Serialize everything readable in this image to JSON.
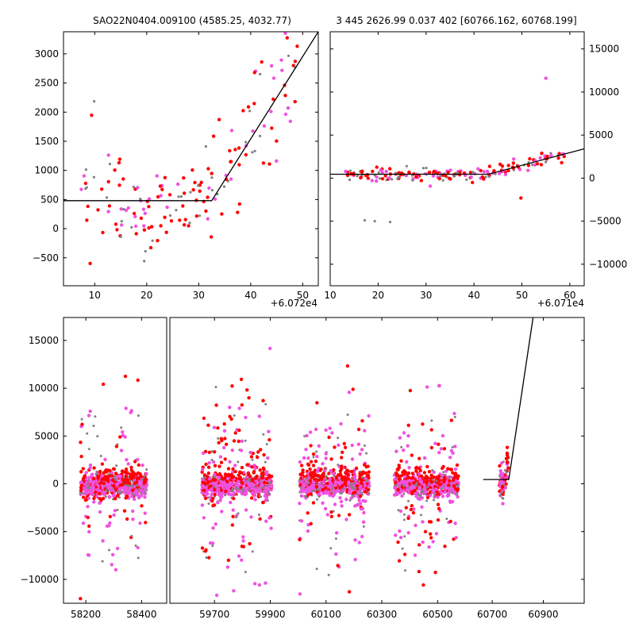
{
  "colors": {
    "gray": "#808080",
    "red": "#ff0000",
    "pink": "#f052e0",
    "line": "#000000"
  },
  "chart_data": [
    {
      "id": "top-left",
      "type": "scatter",
      "title": "SAO22N0404.009100 (4585.25, 4032.77)",
      "xlim": [
        4,
        53
      ],
      "ylim": [
        -980,
        3380
      ],
      "xticks": [
        10,
        20,
        30,
        40,
        50
      ],
      "yticks": [
        -500,
        0,
        500,
        1000,
        1500,
        2000,
        2500,
        3000
      ],
      "y_side": "left",
      "x_offset_label": "+6.072e4",
      "model": {
        "x": [
          4,
          32.5,
          53
        ],
        "y": [
          480,
          480,
          3380
        ]
      },
      "seed": 11,
      "n_points": 170,
      "trend": {
        "base": 480,
        "break_x": 32.5,
        "slope": 141,
        "spread": 480
      }
    },
    {
      "id": "top-right",
      "type": "scatter",
      "title": "3 445 2626.99 0.037 402 [60766.162, 60768.199]",
      "xlim": [
        10,
        63
      ],
      "ylim": [
        -12500,
        17000
      ],
      "xticks": [
        10,
        20,
        30,
        40,
        50,
        60
      ],
      "yticks": [
        -10000,
        -5000,
        0,
        5000,
        10000,
        15000
      ],
      "y_side": "right",
      "x_offset_label": "+6.071e4",
      "model": {
        "x": [
          10,
          43,
          63
        ],
        "y": [
          450,
          450,
          3400
        ]
      },
      "seed": 23,
      "n_points": 190,
      "trend": {
        "base": 450,
        "break_x": 43,
        "slope": 148,
        "spread": 380
      },
      "outliers": [
        {
          "x": 55,
          "y": 11600,
          "c": "pink"
        },
        {
          "x": 17.2,
          "y": -4900,
          "c": "gray"
        },
        {
          "x": 22.5,
          "y": -5100,
          "c": "gray"
        },
        {
          "x": 19.3,
          "y": -5000,
          "c": "gray"
        },
        {
          "x": 49.8,
          "y": -2300,
          "c": "red"
        }
      ]
    },
    {
      "id": "bottom",
      "type": "scatter",
      "title": "",
      "ylim": [
        -12500,
        17400
      ],
      "yticks": [
        -10000,
        -5000,
        0,
        5000,
        10000,
        15000
      ],
      "y_side": "left",
      "segments": [
        {
          "xlim": [
            58120,
            58490
          ],
          "xticks": [
            58200,
            58400
          ]
        },
        {
          "xlim": [
            59540,
            60650
          ],
          "xticks": [
            59700,
            59900,
            60100,
            60300,
            60500
          ]
        },
        {
          "xlim": [
            60650,
            61060
          ],
          "xticks": [
            60700,
            60900
          ]
        }
      ],
      "seasons": [
        {
          "center": 58300,
          "halfwidth": 120,
          "n": 700
        },
        {
          "center": 59780,
          "halfwidth": 125,
          "n": 800
        },
        {
          "center": 60130,
          "halfwidth": 125,
          "n": 800
        },
        {
          "center": 60460,
          "halfwidth": 115,
          "n": 700
        },
        {
          "center": 60745,
          "halfwidth": 18,
          "n": 80
        }
      ],
      "model": {
        "x": [
          60665,
          60745,
          60765,
          60860
        ],
        "y": [
          450,
          450,
          450,
          17400
        ]
      },
      "seed": 37
    }
  ]
}
